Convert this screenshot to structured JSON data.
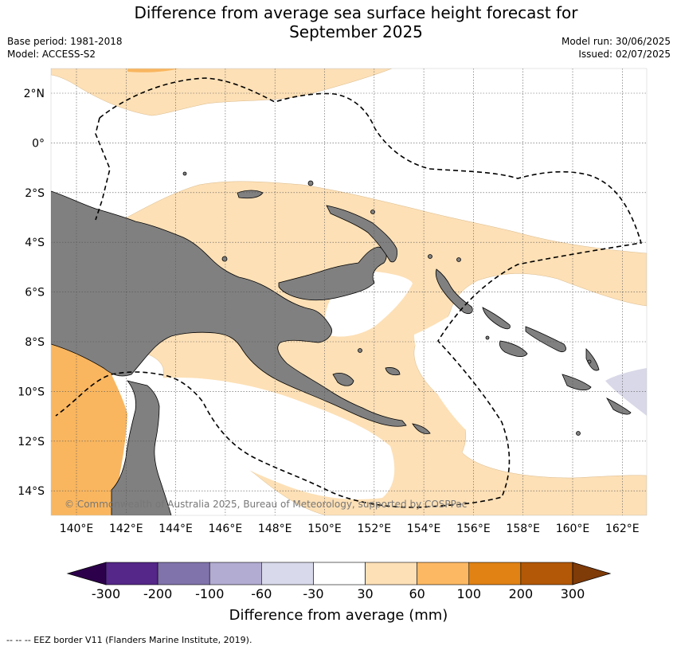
{
  "title_line1": "Difference from average sea surface height forecast for",
  "title_line2": "September 2025",
  "base_period": "Base period: 1981-2018",
  "model": "Model: ACCESS-S2",
  "model_run": "Model run: 30/06/2025",
  "issued": "Issued: 02/07/2025",
  "copyright": "© Commonwealth of Australia 2025, Bureau of Meteorology, supported by COSPPac",
  "footnote": "--  --  -- EEZ border V11 (Flanders Marine Institute, 2019).",
  "map": {
    "lat_labels": [
      "2°N",
      "0°",
      "2°S",
      "4°S",
      "6°S",
      "8°S",
      "10°S",
      "12°S",
      "14°S"
    ],
    "lon_labels": [
      "140°E",
      "142°E",
      "144°E",
      "146°E",
      "148°E",
      "150°E",
      "152°E",
      "154°E",
      "156°E",
      "158°E",
      "160°E",
      "162°E"
    ],
    "colors": {
      "land": "#808080",
      "light_orange": "#fde0b6",
      "orange": "#f9b65f",
      "light_purple": "#d8d8e8",
      "grid": "#555555"
    }
  },
  "colorbar": {
    "title": "Difference from average (mm)",
    "ticks": [
      "-300",
      "-200",
      "-100",
      "-60",
      "-30",
      "30",
      "60",
      "100",
      "200",
      "300"
    ],
    "colors": [
      "#2d004b",
      "#542788",
      "#8073ac",
      "#b2abd2",
      "#d8daeb",
      "#ffffff",
      "#fee0b6",
      "#fdb863",
      "#e08214",
      "#b35806",
      "#7f3b08"
    ]
  }
}
